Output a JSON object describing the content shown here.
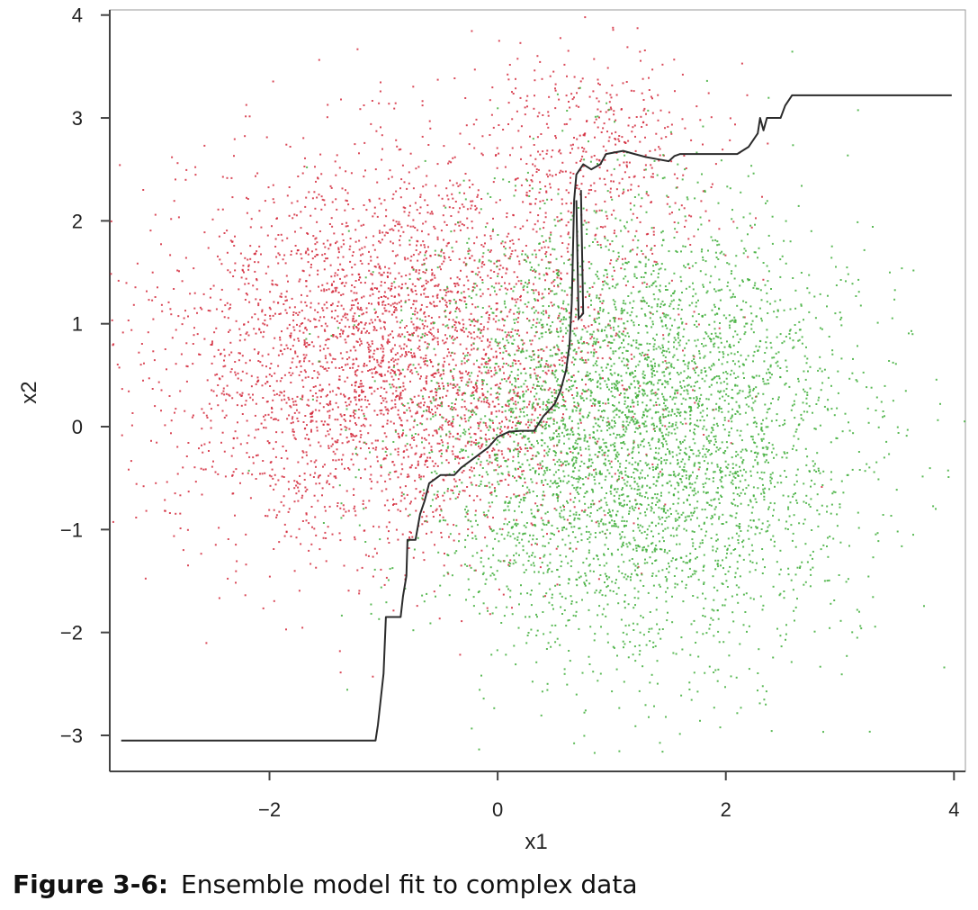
{
  "chart_data": {
    "type": "scatter",
    "title": "",
    "xlabel": "x1",
    "ylabel": "x2",
    "xlim": [
      -3.4,
      4.1
    ],
    "ylim": [
      -3.35,
      4.05
    ],
    "x_ticks": [
      -2,
      0,
      2,
      4
    ],
    "y_ticks": [
      -3,
      -2,
      -1,
      0,
      1,
      2,
      3,
      4
    ],
    "x_tick_labels": [
      "−2",
      "0",
      "2",
      "4"
    ],
    "y_tick_labels": [
      "−3",
      "−2",
      "−1",
      "0",
      "1",
      "2",
      "3",
      "4"
    ],
    "grid": false,
    "colors": {
      "red_class": "#d42a3c",
      "green_class": "#3fae3a",
      "boundary": "#2b2b2b",
      "frame": "#444444"
    },
    "series": [
      {
        "color": "red",
        "distribution": "gaussian",
        "center": [
          -0.9,
          0.7
        ],
        "sd": [
          1.0,
          0.95
        ],
        "n": 3600
      },
      {
        "color": "red",
        "distribution": "gaussian",
        "center": [
          0.9,
          2.7
        ],
        "sd": [
          0.55,
          0.5
        ],
        "n": 450
      },
      {
        "color": "green",
        "distribution": "gaussian",
        "center": [
          1.15,
          -0.05
        ],
        "sd": [
          0.95,
          1.05
        ],
        "n": 4600
      }
    ],
    "boundary": {
      "label": "Ensemble model fit",
      "points": [
        [
          -3.3,
          -3.05
        ],
        [
          -1.07,
          -3.05
        ],
        [
          -1.05,
          -2.9
        ],
        [
          -1.0,
          -2.4
        ],
        [
          -0.98,
          -1.85
        ],
        [
          -0.85,
          -1.85
        ],
        [
          -0.83,
          -1.65
        ],
        [
          -0.8,
          -1.45
        ],
        [
          -0.79,
          -1.1
        ],
        [
          -0.72,
          -1.1
        ],
        [
          -0.68,
          -0.85
        ],
        [
          -0.64,
          -0.72
        ],
        [
          -0.6,
          -0.55
        ],
        [
          -0.5,
          -0.47
        ],
        [
          -0.38,
          -0.47
        ],
        [
          -0.32,
          -0.4
        ],
        [
          -0.2,
          -0.3
        ],
        [
          -0.08,
          -0.2
        ],
        [
          0.0,
          -0.1
        ],
        [
          0.1,
          -0.05
        ],
        [
          0.2,
          -0.04
        ],
        [
          0.32,
          -0.04
        ],
        [
          0.4,
          0.1
        ],
        [
          0.5,
          0.22
        ],
        [
          0.55,
          0.35
        ],
        [
          0.6,
          0.55
        ],
        [
          0.63,
          0.8
        ],
        [
          0.65,
          1.2
        ],
        [
          0.66,
          1.7
        ],
        [
          0.67,
          2.2
        ],
        [
          0.69,
          2.45
        ],
        [
          0.75,
          2.55
        ],
        [
          0.82,
          2.5
        ],
        [
          0.9,
          2.55
        ],
        [
          0.95,
          2.65
        ],
        [
          1.1,
          2.68
        ],
        [
          1.2,
          2.65
        ],
        [
          1.3,
          2.62
        ],
        [
          1.4,
          2.6
        ],
        [
          1.5,
          2.58
        ],
        [
          1.55,
          2.63
        ],
        [
          1.6,
          2.65
        ],
        [
          2.1,
          2.65
        ],
        [
          2.2,
          2.72
        ],
        [
          2.28,
          2.85
        ],
        [
          2.3,
          3.0
        ],
        [
          2.33,
          2.88
        ],
        [
          2.36,
          3.0
        ],
        [
          2.48,
          3.0
        ],
        [
          2.52,
          3.12
        ],
        [
          2.58,
          3.22
        ],
        [
          3.98,
          3.22
        ]
      ],
      "spike": [
        [
          0.69,
          2.2
        ],
        [
          0.71,
          1.05
        ],
        [
          0.75,
          1.1
        ],
        [
          0.73,
          2.3
        ]
      ]
    }
  },
  "caption": {
    "label": "Figure 3-6:",
    "text": "Ensemble model fit to complex data"
  }
}
